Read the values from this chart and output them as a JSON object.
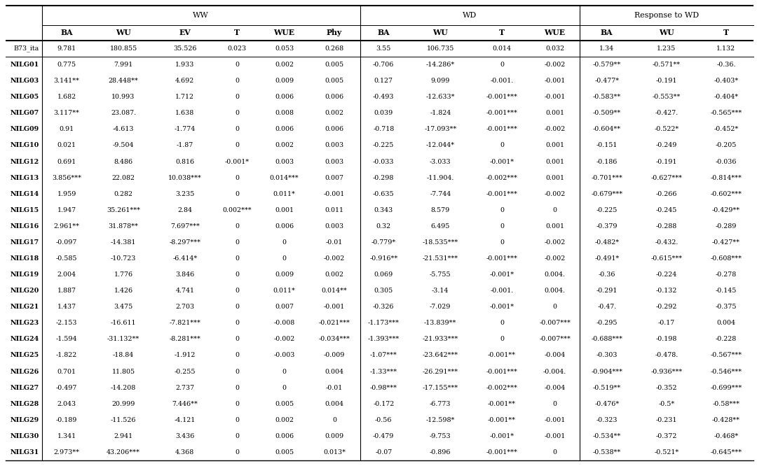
{
  "group_headers": [
    "WW",
    "WD",
    "Response to WD"
  ],
  "col_headers": [
    "BA",
    "WU",
    "EV",
    "T",
    "WUE",
    "Phy",
    "BA",
    "WU",
    "T",
    "WUE",
    "BA",
    "WU",
    "T"
  ],
  "row_labels": [
    "B73_ita",
    "NILG01",
    "NILG03",
    "NILG05",
    "NILG07",
    "NILG09",
    "NILG10",
    "NILG12",
    "NILG13",
    "NILG14",
    "NILG15",
    "NILG16",
    "NILG17",
    "NILG18",
    "NILG19",
    "NILG20",
    "NILG21",
    "NILG23",
    "NILG24",
    "NILG25",
    "NILG26",
    "NILG27",
    "NILG28",
    "NILG29",
    "NILG30",
    "NILG31"
  ],
  "cell_data": [
    [
      "9.781",
      "180.855",
      "35.526",
      "0.023",
      "0.053",
      "0.268",
      "3.55",
      "106.735",
      "0.014",
      "0.032",
      "1.34",
      "1.235",
      "1.132"
    ],
    [
      "0.775",
      "7.991",
      "1.933",
      "0",
      "0.002",
      "0.005",
      "-0.706",
      "-14.286*",
      "0",
      "-0.002",
      "-0.579**",
      "-0.571**",
      "-0.36."
    ],
    [
      "3.141**",
      "28.448**",
      "4.692",
      "0",
      "0.009",
      "0.005",
      "0.127",
      "9.099",
      "-0.001.",
      "-0.001",
      "-0.477*",
      "-0.191",
      "-0.403*"
    ],
    [
      "1.682",
      "10.993",
      "1.712",
      "0",
      "0.006",
      "0.006",
      "-0.493",
      "-12.633*",
      "-0.001***",
      "-0.001",
      "-0.583**",
      "-0.553**",
      "-0.404*"
    ],
    [
      "3.117**",
      "23.087.",
      "1.638",
      "0",
      "0.008",
      "0.002",
      "0.039",
      "-1.824",
      "-0.001***",
      "0.001",
      "-0.509**",
      "-0.427.",
      "-0.565***"
    ],
    [
      "0.91",
      "-4.613",
      "-1.774",
      "0",
      "0.006",
      "0.006",
      "-0.718",
      "-17.093**",
      "-0.001***",
      "-0.002",
      "-0.604**",
      "-0.522*",
      "-0.452*"
    ],
    [
      "0.021",
      "-9.504",
      "-1.87",
      "0",
      "0.002",
      "0.003",
      "-0.225",
      "-12.044*",
      "0",
      "0.001",
      "-0.151",
      "-0.249",
      "-0.205"
    ],
    [
      "0.691",
      "8.486",
      "0.816",
      "-0.001*",
      "0.003",
      "0.003",
      "-0.033",
      "-3.033",
      "-0.001*",
      "0.001",
      "-0.186",
      "-0.191",
      "-0.036"
    ],
    [
      "3.856***",
      "22.082",
      "10.038***",
      "0",
      "0.014***",
      "0.007",
      "-0.298",
      "-11.904.",
      "-0.002***",
      "0.001",
      "-0.701***",
      "-0.627***",
      "-0.814***"
    ],
    [
      "1.959",
      "0.282",
      "3.235",
      "0",
      "0.011*",
      "-0.001",
      "-0.635",
      "-7.744",
      "-0.001***",
      "-0.002",
      "-0.679***",
      "-0.266",
      "-0.602***"
    ],
    [
      "1.947",
      "35.261***",
      "2.84",
      "0.002***",
      "0.001",
      "0.011",
      "0.343",
      "8.579",
      "0",
      "0",
      "-0.225",
      "-0.245",
      "-0.429**"
    ],
    [
      "2.961**",
      "31.878**",
      "7.697***",
      "0",
      "0.006",
      "0.003",
      "0.32",
      "6.495",
      "0",
      "0.001",
      "-0.379",
      "-0.288",
      "-0.289"
    ],
    [
      "-0.097",
      "-14.381",
      "-8.297***",
      "0",
      "0",
      "-0.01",
      "-0.779*",
      "-18.535***",
      "0",
      "-0.002",
      "-0.482*",
      "-0.432.",
      "-0.427**"
    ],
    [
      "-0.585",
      "-10.723",
      "-6.414*",
      "0",
      "0",
      "-0.002",
      "-0.916**",
      "-21.531***",
      "-0.001***",
      "-0.002",
      "-0.491*",
      "-0.615***",
      "-0.608***"
    ],
    [
      "2.004",
      "1.776",
      "3.846",
      "0",
      "0.009",
      "0.002",
      "0.069",
      "-5.755",
      "-0.001*",
      "0.004.",
      "-0.36",
      "-0.224",
      "-0.278"
    ],
    [
      "1.887",
      "1.426",
      "4.741",
      "0",
      "0.011*",
      "0.014**",
      "0.305",
      "-3.14",
      "-0.001.",
      "0.004.",
      "-0.291",
      "-0.132",
      "-0.145"
    ],
    [
      "1.437",
      "3.475",
      "2.703",
      "0",
      "0.007",
      "-0.001",
      "-0.326",
      "-7.029",
      "-0.001*",
      "0",
      "-0.47.",
      "-0.292",
      "-0.375"
    ],
    [
      "-2.153",
      "-16.611",
      "-7.821***",
      "0",
      "-0.008",
      "-0.021***",
      "-1.173***",
      "-13.839**",
      "0",
      "-0.007***",
      "-0.295",
      "-0.17",
      "0.004"
    ],
    [
      "-1.594",
      "-31.132**",
      "-8.281***",
      "0",
      "-0.002",
      "-0.034***",
      "-1.393***",
      "-21.933***",
      "0",
      "-0.007***",
      "-0.688***",
      "-0.198",
      "-0.228"
    ],
    [
      "-1.822",
      "-18.84",
      "-1.912",
      "0",
      "-0.003",
      "-0.009",
      "-1.07***",
      "-23.642***",
      "-0.001**",
      "-0.004",
      "-0.303",
      "-0.478.",
      "-0.567***"
    ],
    [
      "0.701",
      "11.805",
      "-0.255",
      "0",
      "0",
      "0.004",
      "-1.33***",
      "-26.291***",
      "-0.001***",
      "-0.004.",
      "-0.904***",
      "-0.936***",
      "-0.546***"
    ],
    [
      "-0.497",
      "-14.208",
      "2.737",
      "0",
      "0",
      "-0.01",
      "-0.98***",
      "-17.155***",
      "-0.002***",
      "-0.004",
      "-0.519**",
      "-0.352",
      "-0.699***"
    ],
    [
      "2.043",
      "20.999",
      "7.446**",
      "0",
      "0.005",
      "0.004",
      "-0.172",
      "-6.773",
      "-0.001**",
      "0",
      "-0.476*",
      "-0.5*",
      "-0.58***"
    ],
    [
      "-0.189",
      "-11.526",
      "-4.121",
      "0",
      "0.002",
      "0",
      "-0.56",
      "-12.598*",
      "-0.001**",
      "-0.001",
      "-0.323",
      "-0.231",
      "-0.428**"
    ],
    [
      "1.341",
      "2.941",
      "3.436",
      "0",
      "0.006",
      "0.009",
      "-0.479",
      "-9.753",
      "-0.001*",
      "-0.001",
      "-0.534**",
      "-0.372",
      "-0.468*"
    ],
    [
      "2.973**",
      "43.206***",
      "4.368",
      "0",
      "0.005",
      "0.013*",
      "-0.07",
      "-0.896",
      "-0.001***",
      "0",
      "-0.538**",
      "-0.521*",
      "-0.645***"
    ]
  ],
  "bg_color": "#ffffff",
  "text_color": "#000000",
  "line_color": "#000000",
  "font_size": 6.8,
  "header_font_size": 8.0,
  "col_header_font_size": 7.8
}
